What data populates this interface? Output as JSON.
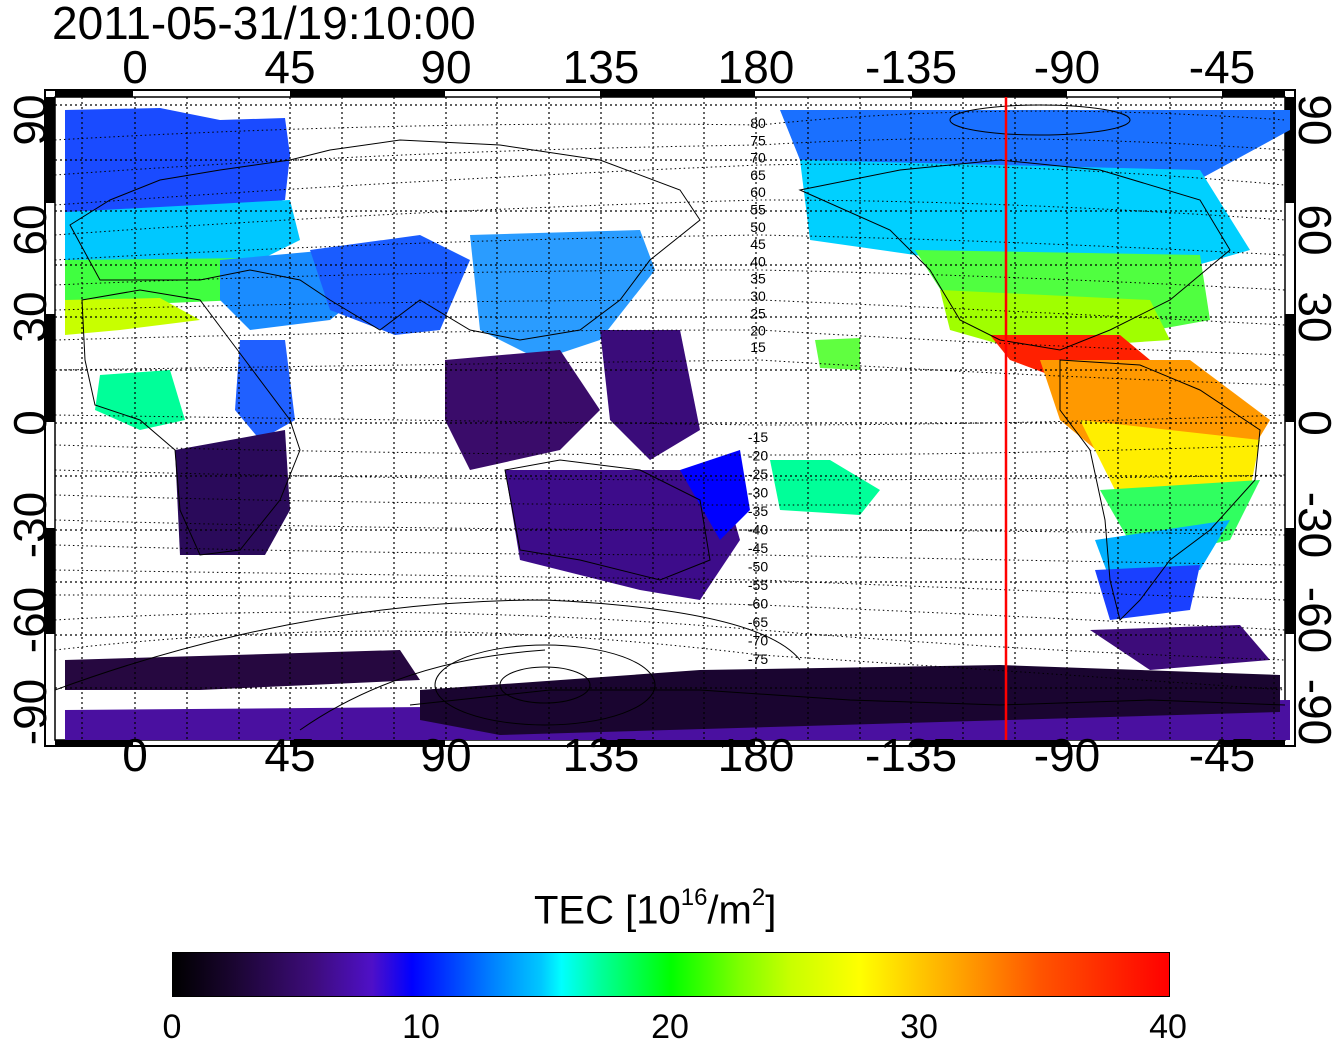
{
  "timestamp": "2011-05-31/19:10:00",
  "map": {
    "longitude_ticks": [
      "0",
      "45",
      "90",
      "135",
      "180",
      "-135",
      "-90",
      "-45"
    ],
    "latitude_ticks": [
      "90",
      "60",
      "30",
      "0",
      "-30",
      "-60",
      "-90"
    ],
    "contour_labels_north": [
      "80",
      "75",
      "70",
      "65",
      "60",
      "55",
      "50",
      "45",
      "40",
      "35",
      "30",
      "25",
      "20",
      "15"
    ],
    "contour_labels_south": [
      "-15",
      "-20",
      "-25",
      "-30",
      "-35",
      "-40",
      "-45",
      "-50",
      "-55",
      "-60",
      "-65",
      "-70",
      "-75"
    ],
    "marker_line": {
      "longitude": -107,
      "color": "#ff0000"
    },
    "grid": "dotted"
  },
  "colorbar": {
    "title_main": "TEC  [10",
    "title_exp": "16",
    "title_unit": "/m",
    "title_unit_exp": "2",
    "title_close": "]",
    "ticks": [
      "0",
      "10",
      "20",
      "30",
      "40"
    ],
    "range": [
      0,
      40
    ]
  }
}
